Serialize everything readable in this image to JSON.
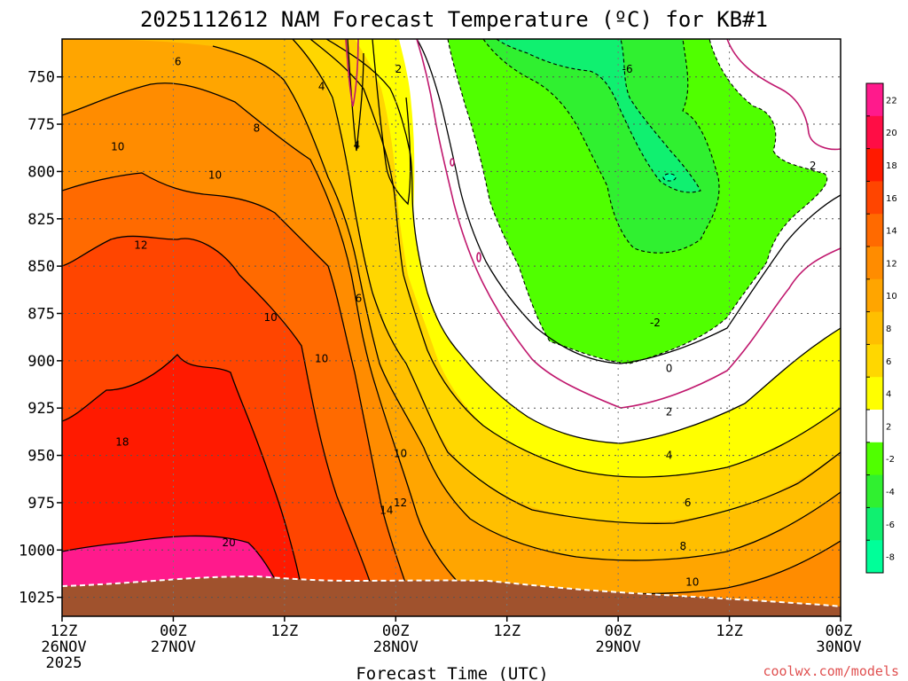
{
  "chart_data": {
    "type": "heatmap",
    "title": "2025112612 NAM Forecast Temperature (ºC) for KB#1",
    "xlabel": "Forecast Time (UTC)",
    "credit": "coolwx.com/models",
    "y_ticks": [
      750,
      775,
      800,
      825,
      850,
      875,
      900,
      925,
      950,
      975,
      1000,
      1025
    ],
    "ylim": [
      730,
      1035
    ],
    "xlim": [
      0,
      84
    ],
    "x_ticks": [
      {
        "hour": 0,
        "l1": "12Z",
        "l2": "26NOV",
        "l3": "2025"
      },
      {
        "hour": 12,
        "l1": "00Z",
        "l2": "27NOV",
        "l3": ""
      },
      {
        "hour": 24,
        "l1": "12Z",
        "l2": "",
        "l3": ""
      },
      {
        "hour": 36,
        "l1": "00Z",
        "l2": "28NOV",
        "l3": ""
      },
      {
        "hour": 48,
        "l1": "12Z",
        "l2": "",
        "l3": ""
      },
      {
        "hour": 60,
        "l1": "00Z",
        "l2": "29NOV",
        "l3": ""
      },
      {
        "hour": 72,
        "l1": "12Z",
        "l2": "",
        "l3": ""
      },
      {
        "hour": 84,
        "l1": "00Z",
        "l2": "30NOV",
        "l3": ""
      }
    ],
    "colorbar": {
      "labels": [
        "22",
        "20",
        "18",
        "16",
        "14",
        "12",
        "10",
        "8",
        "6",
        "4",
        "2",
        "-2",
        "-4",
        "-6",
        "-8"
      ],
      "colors": [
        "#ff1a8c",
        "#ff0d45",
        "#ff1a00",
        "#ff4500",
        "#ff6a00",
        "#ff8c00",
        "#ffa500",
        "#ffbf00",
        "#ffd700",
        "#ffff00",
        "#ffffff",
        "#50ff00",
        "#30f030",
        "#10f070",
        "#00ff99"
      ]
    },
    "fill_colors": {
      "t_m8": "#00ff99",
      "t_m6": "#10f070",
      "t_m4": "#30f030",
      "t_m2": "#50ff00",
      "t_0": "#ffffff",
      "t_2": "#ffffff",
      "t_4": "#ffff00",
      "t_6": "#ffd700",
      "t_8": "#ffbf00",
      "t_10": "#ffa500",
      "t_12": "#ff8c00",
      "t_14": "#ff6a00",
      "t_16": "#ff4500",
      "t_18": "#ff1a00",
      "t_20": "#ff1a8c",
      "terrain": "#a0522d",
      "zero_line": "#c0186e"
    },
    "contour_labels": [
      {
        "text": "6",
        "hour": 12.5,
        "p": 742
      },
      {
        "text": "2",
        "hour": 36.3,
        "p": 746
      },
      {
        "text": "-6",
        "hour": 61.0,
        "p": 746
      },
      {
        "text": "4",
        "hour": 28.0,
        "p": 755
      },
      {
        "text": "8",
        "hour": 21.0,
        "p": 777
      },
      {
        "text": "4",
        "hour": 31.8,
        "p": 786
      },
      {
        "text": "10",
        "hour": 6.0,
        "p": 787
      },
      {
        "text": "10",
        "hour": 16.5,
        "p": 802
      },
      {
        "text": "2",
        "hour": 81.0,
        "p": 797
      },
      {
        "text": "12",
        "hour": 8.5,
        "p": 839
      },
      {
        "text": "6",
        "hour": 32.0,
        "p": 867
      },
      {
        "text": "10",
        "hour": 22.5,
        "p": 877
      },
      {
        "text": "-2",
        "hour": 64.0,
        "p": 880
      },
      {
        "text": "10",
        "hour": 28.0,
        "p": 899
      },
      {
        "text": "0",
        "hour": 65.5,
        "p": 904
      },
      {
        "text": "2",
        "hour": 65.5,
        "p": 927
      },
      {
        "text": "18",
        "hour": 6.5,
        "p": 943
      },
      {
        "text": "10",
        "hour": 36.5,
        "p": 949
      },
      {
        "text": "4",
        "hour": 65.5,
        "p": 950
      },
      {
        "text": "12",
        "hour": 36.5,
        "p": 975
      },
      {
        "text": "14",
        "hour": 35.0,
        "p": 979
      },
      {
        "text": "6",
        "hour": 67.5,
        "p": 975
      },
      {
        "text": "20",
        "hour": 18.0,
        "p": 996
      },
      {
        "text": "8",
        "hour": 67.0,
        "p": 998
      },
      {
        "text": "10",
        "hour": 68.0,
        "p": 1017
      }
    ],
    "grid": true
  }
}
